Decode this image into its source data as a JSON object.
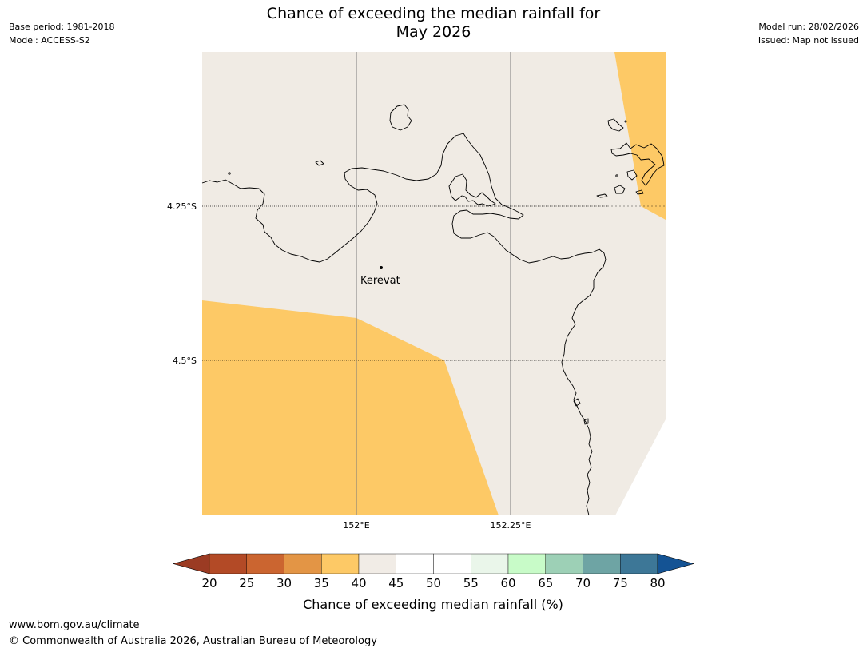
{
  "header": {
    "title_line1": "Chance of exceeding the median rainfall for",
    "title_line2": "May 2026",
    "base_period": "Base period: 1981-2018",
    "model": "Model: ACCESS-S2",
    "model_run": "Model run: 28/02/2026",
    "issued": "Issued: Map not issued"
  },
  "map": {
    "place": "Kerevat",
    "lat_labels": [
      "4.25°S",
      "4.5°S"
    ],
    "lon_labels": [
      "152°E",
      "152.25°E"
    ],
    "colors": {
      "land_background": "#f0ebe4",
      "category_35_40": "#fdc966",
      "coastline": "#000000"
    }
  },
  "colorbar": {
    "label": "Chance of exceeding median rainfall (%)",
    "ticks": [
      "20",
      "25",
      "30",
      "35",
      "40",
      "45",
      "50",
      "55",
      "60",
      "65",
      "70",
      "75",
      "80"
    ],
    "colors": [
      "#9b3b23",
      "#b34a26",
      "#cb6530",
      "#e39545",
      "#fdc966",
      "#f1ece6",
      "#ffffff",
      "#ffffff",
      "#eaf6ea",
      "#c8fbc8",
      "#9dd0b6",
      "#6ea4a4",
      "#3d7797",
      "#145394"
    ]
  },
  "footer": {
    "url": "www.bom.gov.au/climate",
    "copyright": "© Commonwealth of Australia 2026, Australian Bureau of Meteorology"
  }
}
